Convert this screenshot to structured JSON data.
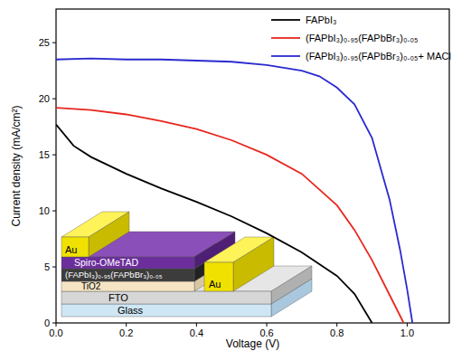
{
  "chart_data": {
    "type": "line",
    "x_label": "Voltage (V)",
    "y_label": "Current density (mA/cm²)",
    "xlim": [
      0,
      1.12
    ],
    "ylim": [
      0,
      28
    ],
    "xticks": [
      {
        "value": 0,
        "label": "0.0"
      },
      0.2,
      0.4,
      0.6,
      0.8,
      {
        "value": 1,
        "label": "1.0"
      }
    ],
    "yticks": [
      0,
      5,
      10,
      15,
      20,
      25
    ],
    "grid": false,
    "legend": "top-right",
    "series": [
      {
        "name": "FAPbI₃",
        "color": "#000000",
        "x": [
          0,
          0.05,
          0.1,
          0.2,
          0.3,
          0.4,
          0.5,
          0.6,
          0.7,
          0.8,
          0.85,
          0.9
        ],
        "values": [
          17.7,
          15.8,
          14.8,
          13.3,
          12.0,
          10.8,
          9.5,
          8.0,
          6.3,
          4.2,
          2.6,
          0
        ]
      },
      {
        "name": "(FAPbI₃)₀.₉₅(FAPbBr₃)₀.₀₅",
        "color": "#e8261f",
        "x": [
          0,
          0.1,
          0.2,
          0.3,
          0.4,
          0.5,
          0.6,
          0.7,
          0.8,
          0.85,
          0.9,
          0.95,
          0.99
        ],
        "values": [
          19.2,
          19.0,
          18.6,
          18.0,
          17.3,
          16.3,
          15.0,
          13.3,
          10.5,
          8.3,
          5.6,
          2.5,
          0
        ]
      },
      {
        "name": "(FAPbI₃)₀.₉₅(FAPbBr₃)₀.₀₅+ MACl",
        "color": "#2a2ad0",
        "x": [
          0,
          0.1,
          0.2,
          0.3,
          0.4,
          0.5,
          0.6,
          0.7,
          0.75,
          0.8,
          0.85,
          0.9,
          0.95,
          0.98,
          1.0,
          1.015
        ],
        "values": [
          23.5,
          23.6,
          23.5,
          23.5,
          23.4,
          23.3,
          23.0,
          22.5,
          22.0,
          21.0,
          19.5,
          16.5,
          11.0,
          6.5,
          3.0,
          0
        ]
      }
    ],
    "inset": {
      "layers": [
        {
          "label": "Glass"
        },
        {
          "label": "FTO"
        },
        {
          "label": "TiO2"
        },
        {
          "label": "(FAPbI₃)₀.₉₅(FAPbBr₃)₀.₀₅"
        },
        {
          "label": "Spiro-OMeTAD"
        }
      ],
      "contacts": [
        {
          "label": "Au"
        },
        {
          "label": "Au"
        }
      ]
    }
  }
}
